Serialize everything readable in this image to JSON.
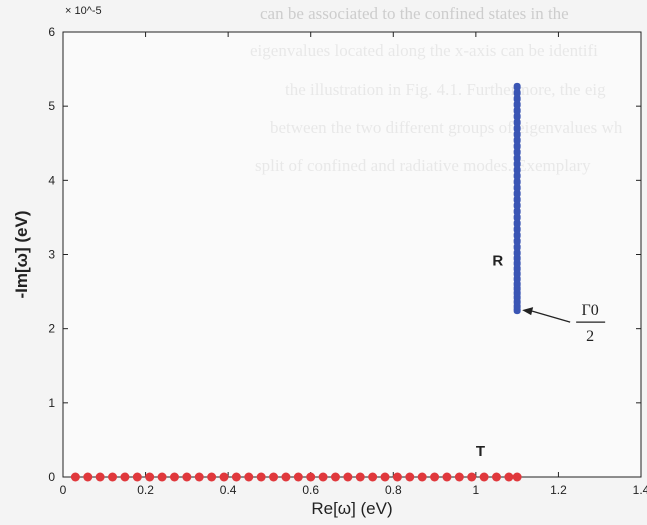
{
  "background_text": [
    "can be associated to the confined states in the",
    "eigenvalues located along the x-axis can be identifi",
    "the illustration in Fig. 4.1. Furthermore, the eig",
    "between the two different groups of eigenvalues wh",
    "split of confined and radiative modes. Exemplary"
  ],
  "colors": {
    "R_series": "#3a55b4",
    "T_series": "#e0383c",
    "axis": "#222222"
  },
  "chart_data": {
    "type": "scatter",
    "xlabel": "Re[ω] (eV)",
    "ylabel": "-Im[ω] (eV)",
    "xlim": [
      0,
      1.4
    ],
    "ylim": [
      0,
      6
    ],
    "x_ticks": [
      "0",
      "0.2",
      "0.4",
      "0.6",
      "0.8",
      "1",
      "1.2",
      "1.4"
    ],
    "y_ticks": [
      "0",
      "1",
      "2",
      "3",
      "4",
      "5",
      "6"
    ],
    "y_multiplier": "× 10^-5",
    "grid": false,
    "series": [
      {
        "name": "R",
        "color": "#3a55b4",
        "x": [
          1.1,
          1.1,
          1.1,
          1.1,
          1.1,
          1.1,
          1.1,
          1.1,
          1.1,
          1.1,
          1.1,
          1.1,
          1.1,
          1.1,
          1.1,
          1.1,
          1.1,
          1.1,
          1.1,
          1.1,
          1.1,
          1.1,
          1.1,
          1.1,
          1.1,
          1.1,
          1.1,
          1.1,
          1.1,
          1.1,
          1.1,
          1.1,
          1.1,
          1.1,
          1.1,
          1.1,
          1.1,
          1.1,
          1.1,
          1.1,
          1.1
        ],
        "y": [
          2.25,
          2.3,
          2.36,
          2.42,
          2.48,
          2.54,
          2.6,
          2.67,
          2.74,
          2.81,
          2.88,
          2.95,
          3.02,
          3.1,
          3.18,
          3.26,
          3.34,
          3.42,
          3.5,
          3.58,
          3.66,
          3.74,
          3.82,
          3.9,
          3.98,
          4.06,
          4.14,
          4.22,
          4.3,
          4.38,
          4.46,
          4.54,
          4.62,
          4.7,
          4.78,
          4.86,
          4.94,
          5.02,
          5.1,
          5.18,
          5.26
        ]
      },
      {
        "name": "T",
        "color": "#e0383c",
        "x": [
          0.03,
          0.06,
          0.09,
          0.12,
          0.15,
          0.18,
          0.21,
          0.24,
          0.27,
          0.3,
          0.33,
          0.36,
          0.39,
          0.42,
          0.45,
          0.48,
          0.51,
          0.54,
          0.57,
          0.6,
          0.63,
          0.66,
          0.69,
          0.72,
          0.75,
          0.78,
          0.81,
          0.84,
          0.87,
          0.9,
          0.93,
          0.96,
          0.99,
          1.02,
          1.05,
          1.08,
          1.1
        ],
        "y": [
          0,
          0,
          0,
          0,
          0,
          0,
          0,
          0,
          0,
          0,
          0,
          0,
          0,
          0,
          0,
          0,
          0,
          0,
          0,
          0,
          0,
          0,
          0,
          0,
          0,
          0,
          0,
          0,
          0,
          0,
          0,
          0,
          0,
          0,
          0,
          0,
          0
        ]
      }
    ],
    "annotations": [
      {
        "label": "R",
        "x": 1.04,
        "y": 2.85
      },
      {
        "label": "T",
        "x": 1.0,
        "y": 0.28
      },
      {
        "numerator": "Γ0",
        "denominator": "2",
        "points_to_x": 1.1,
        "points_to_y": 2.25
      }
    ]
  }
}
